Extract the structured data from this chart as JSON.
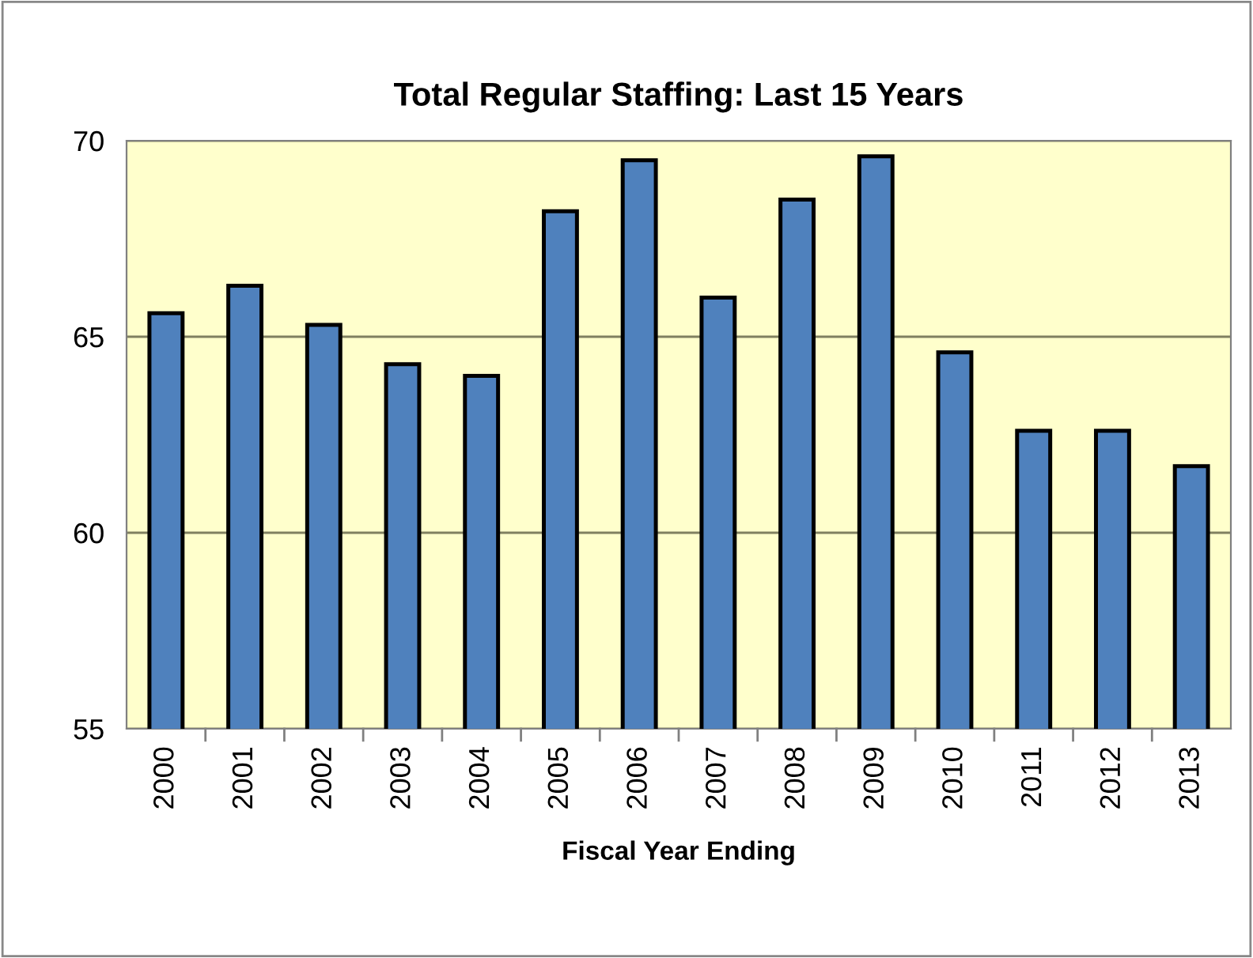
{
  "chart_data": {
    "type": "bar",
    "title": "Total Regular Staffing: Last 15 Years",
    "xlabel": "Fiscal Year Ending",
    "categories": [
      "2000",
      "2001",
      "2002",
      "2003",
      "2004",
      "2005",
      "2006",
      "2007",
      "2008",
      "2009",
      "2010",
      "2011",
      "2012",
      "2013"
    ],
    "values": [
      65.6,
      66.3,
      65.3,
      64.3,
      64.0,
      68.2,
      69.5,
      66.0,
      68.5,
      69.6,
      64.6,
      62.6,
      62.6,
      61.7
    ],
    "color": "#4f81bd",
    "ylim": [
      55,
      70
    ],
    "yticks": [
      55,
      60,
      65,
      70
    ],
    "grid": "y"
  }
}
